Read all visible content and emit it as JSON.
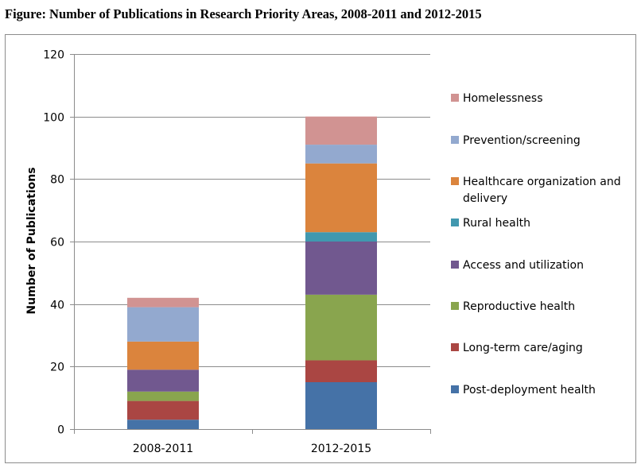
{
  "title": "Figure: Number of Publications in Research Priority Areas, 2008-2011 and 2012-2015",
  "chart_data": {
    "type": "bar",
    "stacked": true,
    "categories": [
      "2008-2011",
      "2012-2015"
    ],
    "ylabel": "Number of Publications",
    "xlabel": "",
    "ylim": [
      0,
      120
    ],
    "yticks": [
      0,
      20,
      40,
      60,
      80,
      100,
      120
    ],
    "grid": true,
    "legend_position": "right",
    "series": [
      {
        "name": "Post-deployment health",
        "color": "#4572A7",
        "values": [
          3,
          15
        ]
      },
      {
        "name": "Long-term care/aging",
        "color": "#AA4643",
        "values": [
          6,
          7
        ]
      },
      {
        "name": "Reproductive health",
        "color": "#89A54E",
        "values": [
          3,
          21
        ]
      },
      {
        "name": "Access and utilization",
        "color": "#71588F",
        "values": [
          7,
          17
        ]
      },
      {
        "name": "Rural health",
        "color": "#4198AF",
        "values": [
          0,
          3
        ]
      },
      {
        "name": "Healthcare organization and delivery",
        "color": "#DB843D",
        "values": [
          9,
          22
        ]
      },
      {
        "name": "Prevention/screening",
        "color": "#93A9CF",
        "values": [
          11,
          6
        ]
      },
      {
        "name": "Homelessness",
        "color": "#D19392",
        "values": [
          3,
          9
        ]
      }
    ],
    "legend_lines": {
      "Healthcare organization and delivery": [
        "Healthcare organization and",
        "delivery"
      ]
    }
  }
}
